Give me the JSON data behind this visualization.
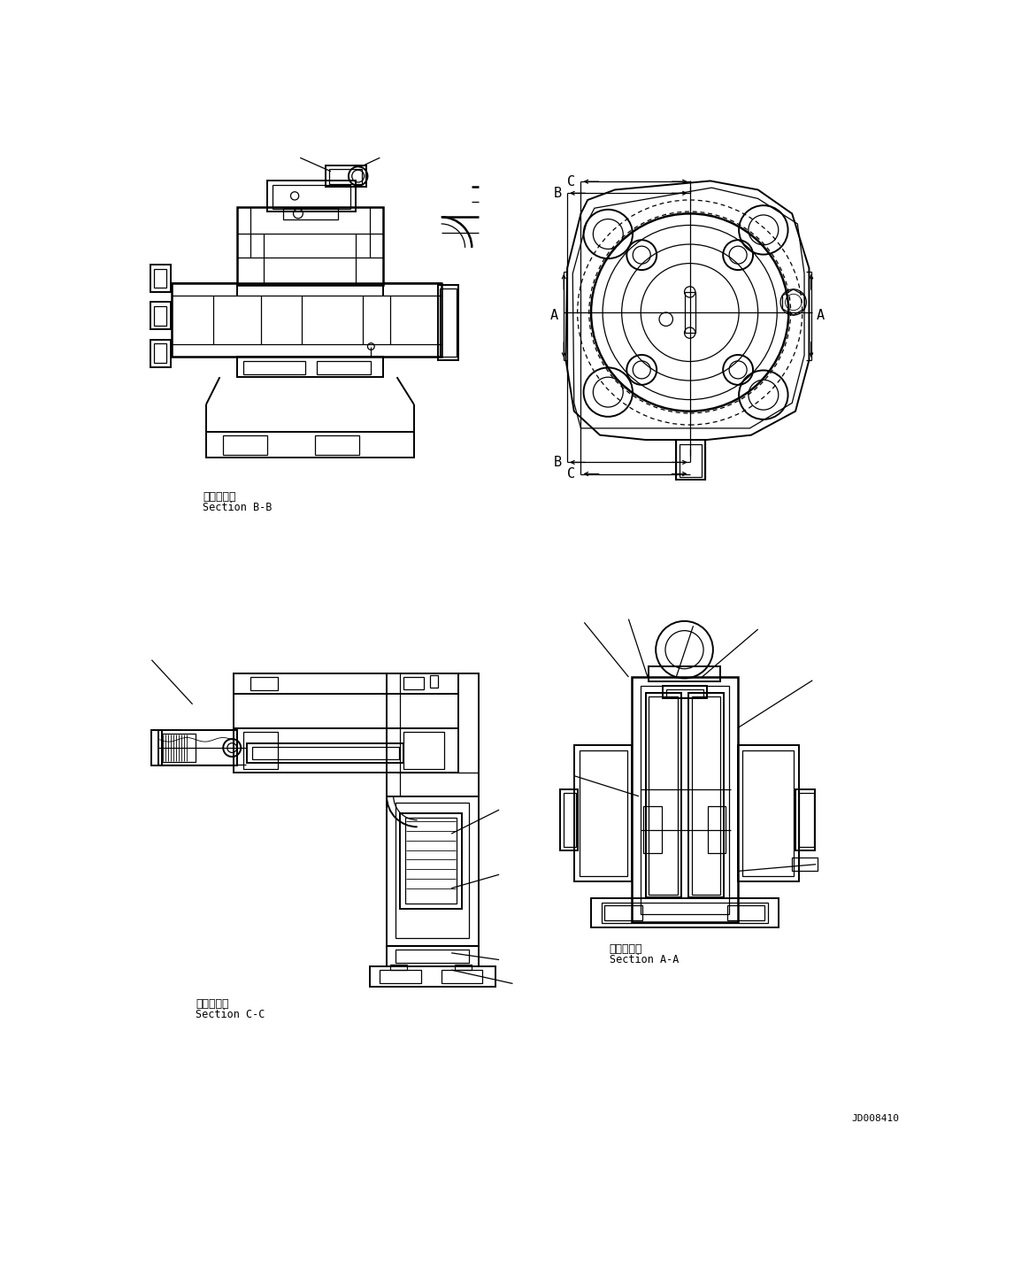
{
  "bg_color": "#ffffff",
  "fig_width": 11.63,
  "fig_height": 14.34,
  "dpi": 100,
  "labels": {
    "section_bb_jp": "断面Ｂ－Ｂ",
    "section_bb_en": "Section B-B",
    "section_cc_jp": "断面Ｃ－Ｃ",
    "section_cc_en": "Section C-C",
    "section_aa_jp": "断面Ａ－Ａ",
    "section_aa_en": "Section A-A",
    "part_number": "JD008410"
  }
}
